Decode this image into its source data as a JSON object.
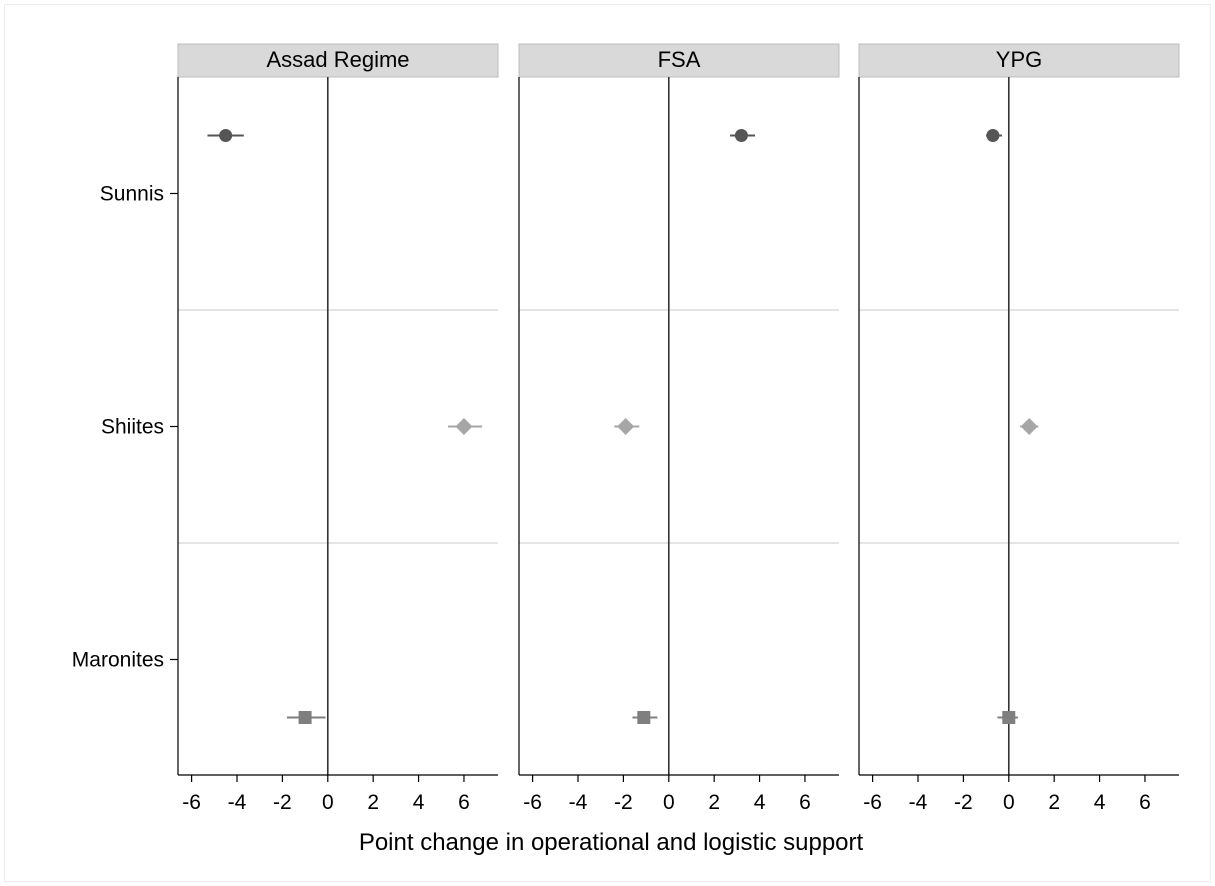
{
  "chart_data": {
    "type": "scatter",
    "xlabel": "Point change in operational and logistic support",
    "xlim": [
      -6.6,
      7.5
    ],
    "xticks": [
      -6,
      -4,
      -2,
      0,
      2,
      4,
      6
    ],
    "xtick_labels": [
      "-6",
      "-4",
      "-2",
      "0",
      "2",
      "4",
      "6"
    ],
    "categories": [
      "Sunnis",
      "Shiites",
      "Maronites"
    ],
    "grid": "horizontal separators between category groups",
    "reference_line": 0,
    "colors": {
      "Sunnis": "#555555",
      "Shiites": "#a6a6a6",
      "Maronites": "#7f7f7f",
      "panel_header": "#d9d9d9"
    },
    "markers": {
      "Sunnis": "circle",
      "Shiites": "diamond",
      "Maronites": "square"
    },
    "panels": [
      {
        "title": "Assad Regime",
        "points": [
          {
            "group": "Sunnis",
            "estimate": -4.5,
            "ci": [
              -5.3,
              -3.7
            ]
          },
          {
            "group": "Shiites",
            "estimate": 6.0,
            "ci": [
              5.3,
              6.8
            ]
          },
          {
            "group": "Maronites",
            "estimate": -1.0,
            "ci": [
              -1.8,
              -0.1
            ]
          }
        ]
      },
      {
        "title": "FSA",
        "points": [
          {
            "group": "Sunnis",
            "estimate": 3.2,
            "ci": [
              2.7,
              3.8
            ]
          },
          {
            "group": "Shiites",
            "estimate": -1.9,
            "ci": [
              -2.4,
              -1.3
            ]
          },
          {
            "group": "Maronites",
            "estimate": -1.1,
            "ci": [
              -1.6,
              -0.5
            ]
          }
        ]
      },
      {
        "title": "YPG",
        "points": [
          {
            "group": "Sunnis",
            "estimate": -0.7,
            "ci": [
              -1.0,
              -0.3
            ]
          },
          {
            "group": "Shiites",
            "estimate": 0.9,
            "ci": [
              0.5,
              1.3
            ]
          },
          {
            "group": "Maronites",
            "estimate": 0.0,
            "ci": [
              -0.5,
              0.4
            ]
          }
        ]
      }
    ]
  }
}
